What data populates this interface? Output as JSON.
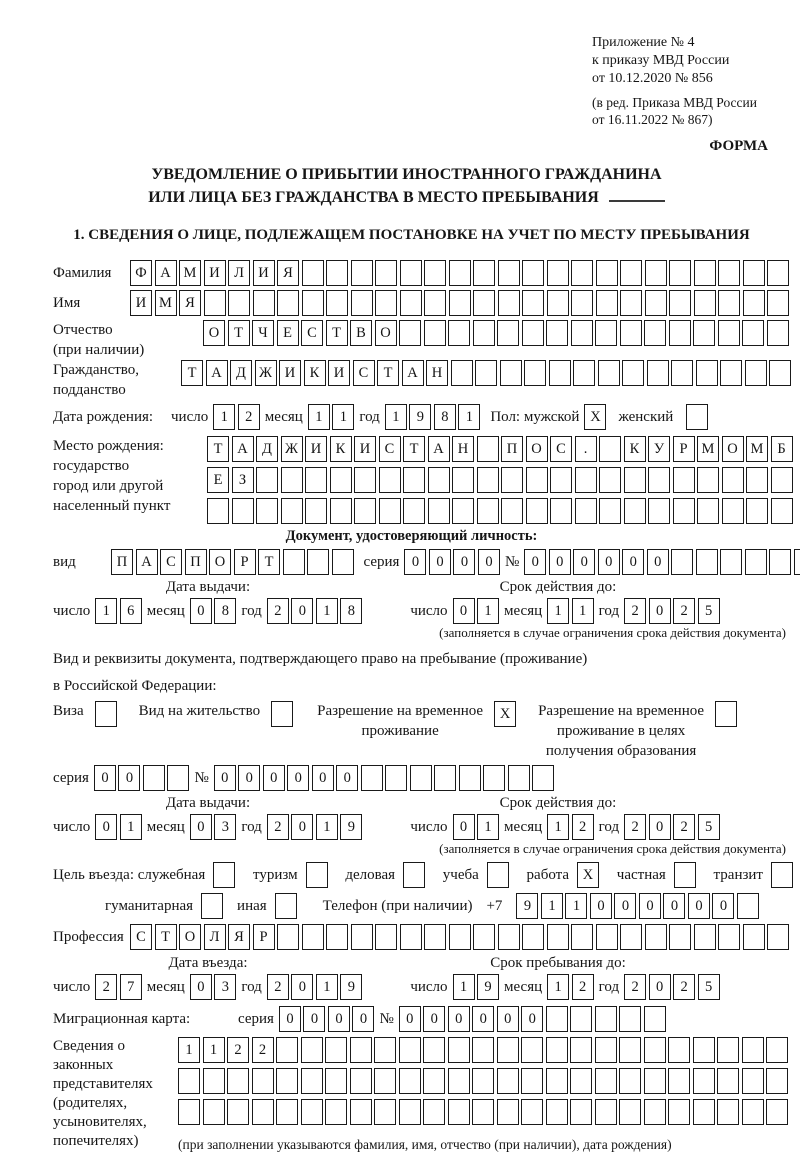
{
  "header": {
    "ref_lines": [
      "Приложение № 4",
      "к приказу МВД России",
      "от 10.12.2020 № 856"
    ],
    "amend_lines": [
      "(в ред. Приказа МВД России",
      "от 16.11.2022 № 867)"
    ],
    "form_label": "ФОРМА"
  },
  "title": {
    "line1": "УВЕДОМЛЕНИЕ О ПРИБЫТИИ ИНОСТРАННОГО ГРАЖДАНИНА",
    "line2": "ИЛИ ЛИЦА БЕЗ ГРАЖДАНСТВА В МЕСТО ПРЕБЫВАНИЯ"
  },
  "section1_heading": "1. СВЕДЕНИЯ О ЛИЦЕ, ПОДЛЕЖАЩЕМ ПОСТАНОВКЕ НА УЧЕТ ПО МЕСТУ ПРЕБЫВАНИЯ",
  "words": {
    "day": "число",
    "month": "месяц",
    "year": "год",
    "series": "серия",
    "number": "№"
  },
  "person": {
    "surname": {
      "label": "Фамилия",
      "boxes": {
        "text": "ФАМИЛИЯ",
        "len": 27
      }
    },
    "firstname": {
      "label": "Имя",
      "boxes": {
        "text": "ИМЯ",
        "len": 27
      }
    },
    "patronymic": {
      "label_lines": [
        "Отчество",
        "(при наличии)"
      ],
      "boxes": {
        "text": "ОТЧЕСТВО",
        "len": 24
      }
    },
    "citizenship": {
      "label_lines": [
        "Гражданство,",
        "подданство"
      ],
      "boxes": {
        "text": "ТАДЖИКИСТАН",
        "len": 25
      }
    },
    "birthdate": {
      "label": "Дата рождения:",
      "day": {
        "text": "12",
        "len": 2
      },
      "month": {
        "text": "11",
        "len": 2
      },
      "year": {
        "text": "1981",
        "len": 4
      }
    },
    "sex": {
      "male_label": "Пол: мужской",
      "male_value": "X",
      "female_label": "женский",
      "female_value": ""
    },
    "birthplace": {
      "label_lines": [
        "Место рождения:",
        "государство",
        "город или другой",
        "населенный пункт"
      ],
      "rows": [
        {
          "text": "ТАДЖИКИСТАН ПОС. КУРМОМБ",
          "len": 24
        },
        {
          "text": "ЕЗ",
          "len": 24
        },
        {
          "text": "",
          "len": 24
        }
      ]
    }
  },
  "identity_doc": {
    "heading": "Документ, удостоверяющий личность:",
    "kind_label": "вид",
    "kind": {
      "text": "ПАСПОРТ",
      "len": 10
    },
    "series": {
      "text": "0000",
      "len": 4
    },
    "number": {
      "text": "000000",
      "len": 12
    },
    "issue_header": "Дата выдачи:",
    "expiry_header": "Срок действия до:",
    "issue": {
      "day": {
        "text": "16",
        "len": 2
      },
      "month": {
        "text": "08",
        "len": 2
      },
      "year": {
        "text": "2018",
        "len": 4
      }
    },
    "expiry": {
      "day": {
        "text": "01",
        "len": 2
      },
      "month": {
        "text": "11",
        "len": 2
      },
      "year": {
        "text": "2025",
        "len": 4
      }
    },
    "note": "(заполняется в случае ограничения срока действия документа)"
  },
  "residence_doc": {
    "intro_line1": "Вид и реквизиты документа, подтверждающего право на пребывание (проживание)",
    "intro_line2": "в Российской Федерации:",
    "types": [
      {
        "label_lines": [
          "Виза"
        ],
        "value": ""
      },
      {
        "label_lines": [
          "Вид на жительство"
        ],
        "value": ""
      },
      {
        "label_lines": [
          "Разрешение на временное",
          "проживание"
        ],
        "value": "X"
      },
      {
        "label_lines": [
          "Разрешение на временное",
          "проживание в целях",
          "получения образования"
        ],
        "value": ""
      }
    ],
    "series": {
      "text": "00",
      "len": 4
    },
    "number": {
      "text": "000000",
      "len": 14
    },
    "issue_header": "Дата выдачи:",
    "expiry_header": "Срок действия до:",
    "issue": {
      "day": {
        "text": "01",
        "len": 2
      },
      "month": {
        "text": "03",
        "len": 2
      },
      "year": {
        "text": "2019",
        "len": 4
      }
    },
    "expiry": {
      "day": {
        "text": "01",
        "len": 2
      },
      "month": {
        "text": "12",
        "len": 2
      },
      "year": {
        "text": "2025",
        "len": 4
      }
    },
    "note": "(заполняется в случае ограничения срока действия документа)"
  },
  "purpose": {
    "row1": [
      {
        "label": "Цель въезда: служебная",
        "value": ""
      },
      {
        "label": "туризм",
        "value": ""
      },
      {
        "label": "деловая",
        "value": ""
      },
      {
        "label": "учеба",
        "value": ""
      },
      {
        "label": "работа",
        "value": "X"
      },
      {
        "label": "частная",
        "value": ""
      },
      {
        "label": "транзит",
        "value": ""
      }
    ],
    "row2": [
      {
        "label": "гуманитарная",
        "value": ""
      },
      {
        "label": "иная",
        "value": ""
      }
    ],
    "phone_label": "Телефон (при наличии)",
    "phone_prefix": "+7",
    "phone": {
      "text": "911000000",
      "len": 10
    }
  },
  "profession": {
    "label": "Профессия",
    "boxes": {
      "text": "СТОЛЯР",
      "len": 27
    }
  },
  "entry": {
    "entry_header": "Дата въезда:",
    "stay_header": "Срок пребывания до:",
    "entry_date": {
      "day": {
        "text": "27",
        "len": 2
      },
      "month": {
        "text": "03",
        "len": 2
      },
      "year": {
        "text": "2019",
        "len": 4
      }
    },
    "stay_until": {
      "day": {
        "text": "19",
        "len": 2
      },
      "month": {
        "text": "12",
        "len": 2
      },
      "year": {
        "text": "2025",
        "len": 4
      }
    }
  },
  "migration_card": {
    "label": "Миграционная карта:",
    "series": {
      "text": "0000",
      "len": 4
    },
    "number": {
      "text": "000000",
      "len": 11
    }
  },
  "legal_reps": {
    "label_lines": [
      "Сведения о",
      "законных",
      "представителях",
      "(родителях,",
      "усыновителях,",
      "попечителях)"
    ],
    "rows": [
      {
        "text": "1122",
        "len": 25
      },
      {
        "text": "",
        "len": 25
      },
      {
        "text": "",
        "len": 25
      }
    ],
    "note": "(при заполнении указываются фамилия, имя, отчество (при наличии), дата рождения)"
  }
}
